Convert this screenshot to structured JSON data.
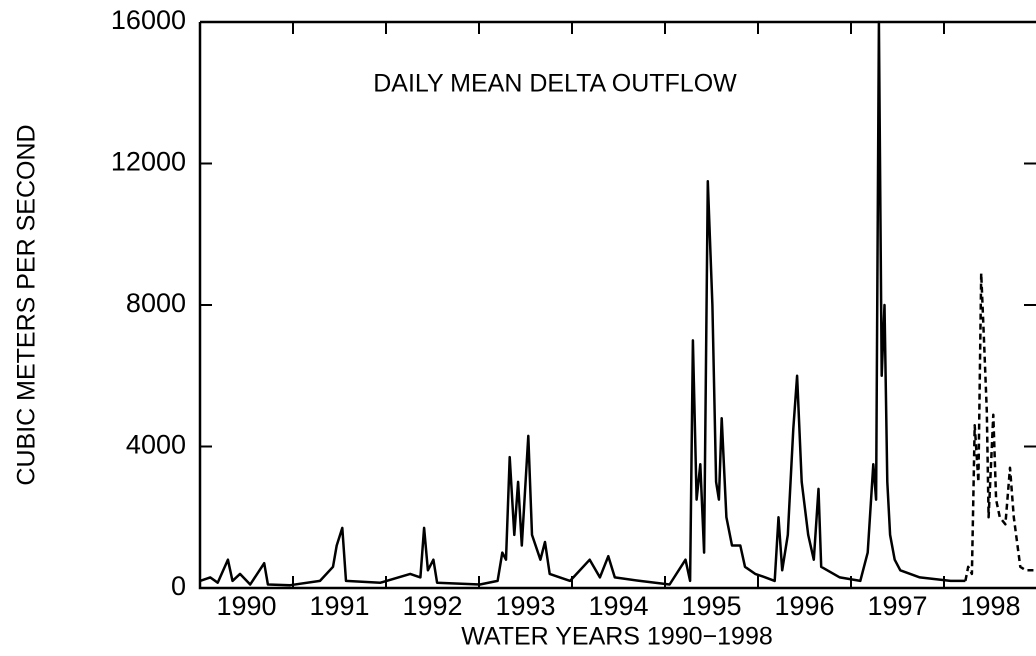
{
  "chart_data": {
    "type": "line",
    "title": "DAILY MEAN DELTA OUTFLOW",
    "x_label": "WATER YEARS 1990−1998",
    "y_label": "CUBIC METERS PER SECOND",
    "xlim": [
      1989.5,
      1998.5
    ],
    "xticks": [
      1990,
      1991,
      1992,
      1993,
      1994,
      1995,
      1996,
      1997,
      1998
    ],
    "xminorticks": [
      1990.5,
      1991.5,
      1992.5,
      1993.5,
      1994.5,
      1995.5,
      1996.5,
      1997.5
    ],
    "ylim": [
      0,
      16000
    ],
    "yticks": [
      0,
      4000,
      8000,
      12000,
      16000
    ],
    "series": [
      {
        "color": "#000000",
        "dashed": false,
        "x": [
          1989.5,
          1989.61,
          1989.69,
          1989.8,
          1989.85,
          1989.93,
          1990.04,
          1990.19,
          1990.23,
          1990.47,
          1990.79,
          1990.93,
          1990.97,
          1991.03,
          1991.07,
          1991.44,
          1991.76,
          1991.87,
          1991.91,
          1991.95,
          1992.01,
          1992.05,
          1992.51,
          1992.7,
          1992.75,
          1992.79,
          1992.83,
          1992.88,
          1992.92,
          1992.96,
          1993.03,
          1993.07,
          1993.16,
          1993.21,
          1993.26,
          1993.48,
          1993.69,
          1993.8,
          1993.89,
          1993.96,
          1994.23,
          1994.55,
          1994.72,
          1994.77,
          1994.8,
          1994.84,
          1994.88,
          1994.92,
          1994.96,
          1995.01,
          1995.05,
          1995.08,
          1995.11,
          1995.16,
          1995.22,
          1995.31,
          1995.36,
          1995.47,
          1995.58,
          1995.68,
          1995.72,
          1995.76,
          1995.82,
          1995.88,
          1995.92,
          1995.97,
          1996.04,
          1996.1,
          1996.15,
          1996.18,
          1996.38,
          1996.6,
          1996.68,
          1996.74,
          1996.77,
          1996.8,
          1996.83,
          1996.86,
          1996.89,
          1996.92,
          1996.97,
          1997.03,
          1997.24,
          1997.57,
          1997.73
        ],
        "values": [
          200,
          300,
          150,
          800,
          200,
          400,
          100,
          700,
          100,
          80,
          200,
          600,
          1200,
          1700,
          200,
          150,
          400,
          300,
          1700,
          500,
          800,
          150,
          100,
          200,
          1000,
          800,
          3700,
          1500,
          3000,
          1200,
          4300,
          1500,
          800,
          1300,
          400,
          200,
          800,
          300,
          900,
          300,
          200,
          100,
          800,
          200,
          7000,
          2500,
          3500,
          1000,
          11500,
          8000,
          3000,
          2500,
          4800,
          2000,
          1200,
          1200,
          600,
          400,
          300,
          200,
          2000,
          500,
          1500,
          4500,
          6000,
          3000,
          1500,
          800,
          2800,
          600,
          300,
          200,
          1000,
          3500,
          2500,
          16000,
          6000,
          8000,
          3000,
          1500,
          800,
          500,
          300,
          200,
          200
        ]
      },
      {
        "color": "#000000",
        "dashed": true,
        "x": [
          1997.73,
          1997.76,
          1997.8,
          1997.83,
          1997.87,
          1997.9,
          1997.93,
          1997.96,
          1997.98,
          1998.03,
          1998.06,
          1998.1,
          1998.16,
          1998.21,
          1998.25,
          1998.32,
          1998.38,
          1998.49
        ],
        "values": [
          200,
          600,
          400,
          4600,
          3000,
          8900,
          7000,
          5000,
          2000,
          4900,
          2500,
          2000,
          1800,
          3400,
          2000,
          600,
          500,
          500
        ]
      }
    ]
  }
}
